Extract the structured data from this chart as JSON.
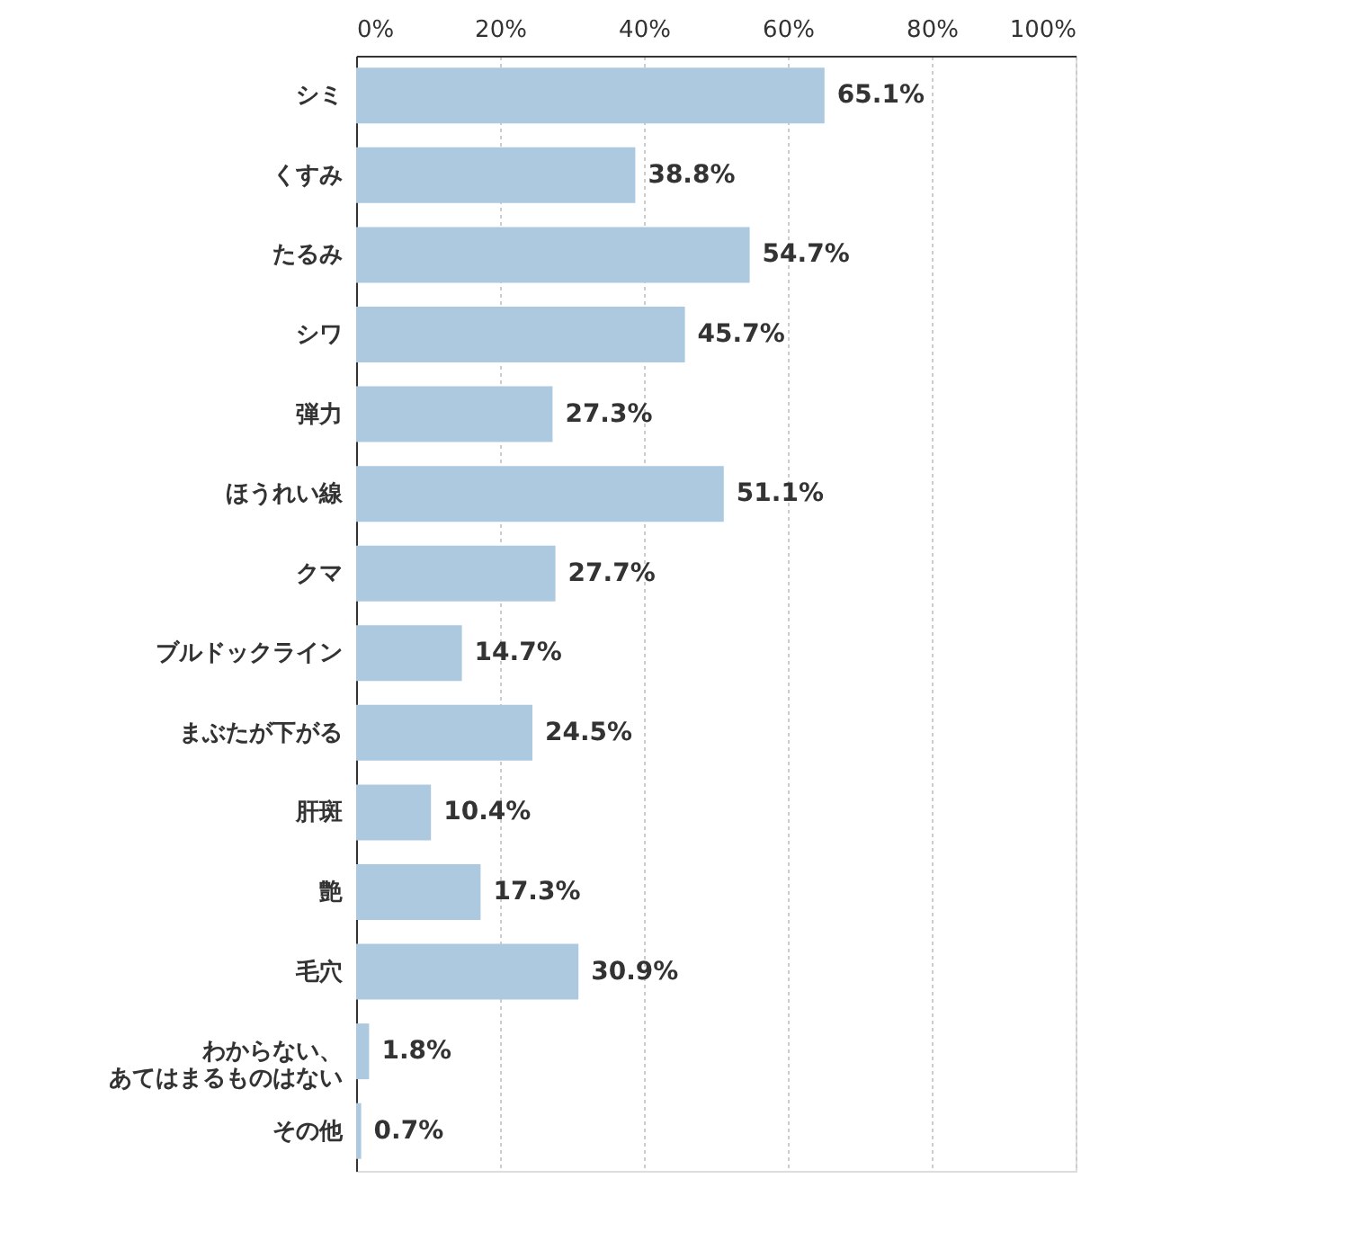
{
  "chart_data": {
    "type": "bar",
    "orientation": "horizontal",
    "categories": [
      "シミ",
      "くすみ",
      "たるみ",
      "シワ",
      "弾力",
      "ほうれい線",
      "クマ",
      "ブルドックライン",
      "まぶたが下がる",
      "肝斑",
      "艶",
      "毛穴",
      "わからない、あてはまるものはない",
      "その他"
    ],
    "values": [
      65.1,
      38.8,
      54.7,
      45.7,
      27.3,
      51.1,
      27.7,
      14.7,
      24.5,
      10.4,
      17.3,
      30.9,
      1.8,
      0.7
    ],
    "value_labels": [
      "65.1%",
      "38.8%",
      "54.7%",
      "45.7%",
      "27.3%",
      "51.1%",
      "27.7%",
      "14.7%",
      "24.5%",
      "10.4%",
      "17.3%",
      "30.9%",
      "1.8%",
      "0.7%"
    ],
    "color": "#adc9df",
    "xlim": [
      0,
      100
    ],
    "xticks": [
      {
        "value": 0,
        "label": "0%"
      },
      {
        "value": 20,
        "label": "20%"
      },
      {
        "value": 40,
        "label": "40%"
      },
      {
        "value": 60,
        "label": "60%"
      },
      {
        "value": 80,
        "label": "80%"
      },
      {
        "value": 100,
        "label": "100%"
      }
    ],
    "grid": "x"
  }
}
